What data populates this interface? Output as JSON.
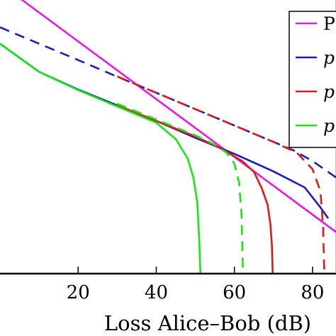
{
  "chart_data": {
    "type": "line",
    "xlabel": "Loss Alice–Bob (dB)",
    "ylabel": "",
    "xlim": [
      0,
      86
    ],
    "ylim": [
      0,
      1
    ],
    "xticks": [
      20,
      40,
      60,
      80
    ],
    "xtick_labels": [
      "20",
      "40",
      "60",
      "80"
    ],
    "grid": false,
    "legend": {
      "placement": "top-right",
      "entries": [
        {
          "label": "PI",
          "color": "#e619e6",
          "style": "solid",
          "italic": false
        },
        {
          "label": "p",
          "color": "#1a1acc",
          "style": "solid",
          "italic": true
        },
        {
          "label": "p",
          "color": "#e01818",
          "style": "solid",
          "italic": true
        },
        {
          "label": "p",
          "color": "#16e616",
          "style": "solid",
          "italic": true
        }
      ]
    },
    "series": [
      {
        "color": "#e619e6",
        "style": "solid",
        "x": [
          0,
          86
        ],
        "y": [
          1.06,
          0.15
        ]
      },
      {
        "color": "#1a1acc",
        "style": "solid",
        "x": [
          0,
          10,
          20,
          30,
          40,
          50,
          60,
          70,
          78,
          82,
          84
        ],
        "y": [
          0.84,
          0.737,
          0.672,
          0.614,
          0.557,
          0.495,
          0.436,
          0.372,
          0.313,
          0.24,
          0.2
        ]
      },
      {
        "color": "#1a1acc",
        "style": "dashed",
        "x": [
          0,
          10,
          20,
          30,
          40,
          50,
          60,
          70,
          75,
          80,
          86
        ],
        "y": [
          0.9,
          0.84,
          0.78,
          0.719,
          0.66,
          0.6,
          0.54,
          0.48,
          0.45,
          0.41,
          0.35
        ]
      },
      {
        "color": "#e01818",
        "style": "solid",
        "x": [
          30,
          40,
          50,
          56,
          62,
          65,
          67,
          68.5,
          69.2,
          69.6,
          69.8
        ],
        "y": [
          0.614,
          0.557,
          0.5,
          0.46,
          0.41,
          0.37,
          0.31,
          0.25,
          0.18,
          0.1,
          0
        ]
      },
      {
        "color": "#e01818",
        "style": "dashed",
        "x": [
          30,
          40,
          50,
          60,
          70,
          76,
          80,
          82,
          82.7,
          83
        ],
        "y": [
          0.72,
          0.66,
          0.6,
          0.54,
          0.48,
          0.44,
          0.38,
          0.3,
          0.17,
          0
        ]
      },
      {
        "color": "#16e616",
        "style": "solid",
        "x": [
          0,
          10,
          20,
          30,
          40,
          45,
          48,
          49.5,
          50.5,
          51,
          51.3
        ],
        "y": [
          0.84,
          0.737,
          0.67,
          0.61,
          0.55,
          0.49,
          0.42,
          0.35,
          0.26,
          0.12,
          0
        ]
      },
      {
        "color": "#16e616",
        "style": "dashed",
        "x": [
          30,
          40,
          50,
          55,
          58,
          60,
          61.2,
          61.8,
          62.2
        ],
        "y": [
          0.62,
          0.562,
          0.504,
          0.47,
          0.44,
          0.4,
          0.33,
          0.22,
          0
        ]
      }
    ]
  }
}
